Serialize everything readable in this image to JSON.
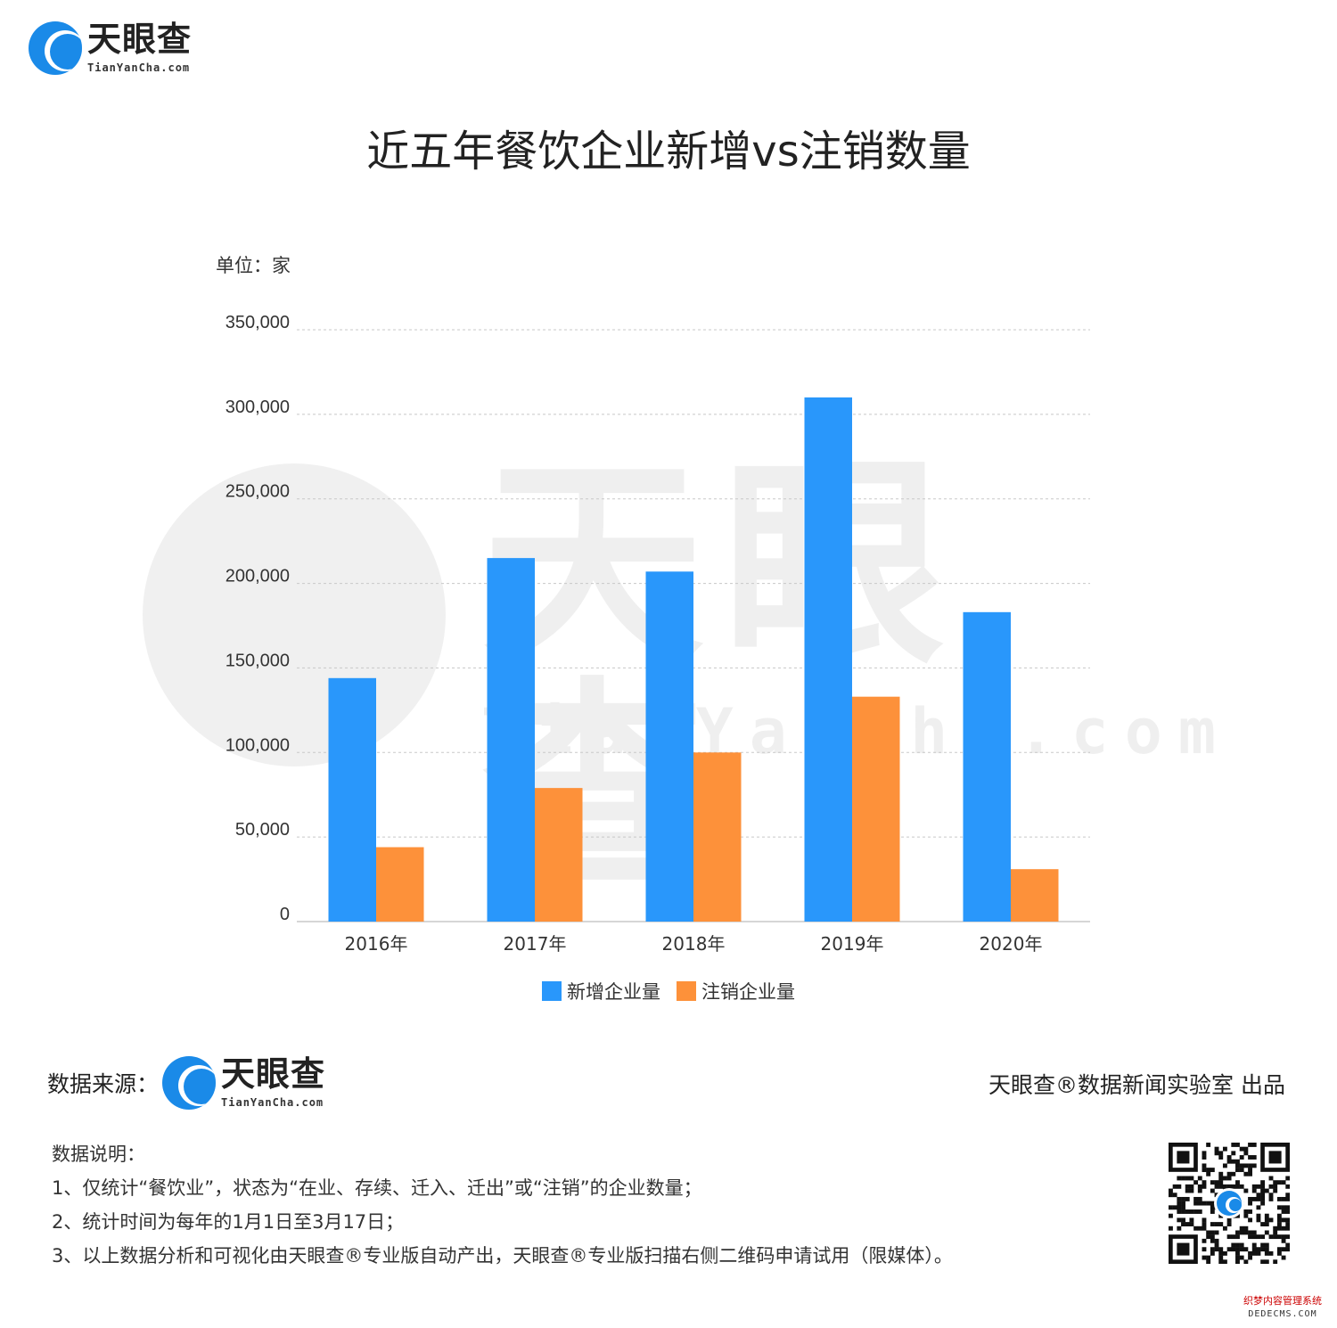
{
  "logo": {
    "brand": "天眼查",
    "domain": "TianYanCha.com"
  },
  "title": "近五年餐饮企业新增vs注销数量",
  "unit_label": "单位：家",
  "colors": {
    "new": "#2997fb",
    "cancel": "#fd913a",
    "grid": "#c8c8c8",
    "brand_blue": "#1a8ae8"
  },
  "legend": [
    {
      "name": "新增企业量",
      "color": "#2997fb"
    },
    {
      "name": "注销企业量",
      "color": "#fd913a"
    }
  ],
  "chart_data": {
    "type": "bar",
    "title": "近五年餐饮企业新增vs注销数量",
    "ylabel": "单位：家",
    "categories": [
      "2016年",
      "2017年",
      "2018年",
      "2019年",
      "2020年"
    ],
    "series": [
      {
        "name": "新增企业量",
        "values": [
          144000,
          215000,
          207000,
          310000,
          183000
        ]
      },
      {
        "name": "注销企业量",
        "values": [
          44000,
          79000,
          100000,
          133000,
          31000
        ]
      }
    ],
    "ylim": [
      0,
      350000
    ],
    "yticks": [
      0,
      50000,
      100000,
      150000,
      200000,
      250000,
      300000,
      350000
    ],
    "ytick_labels": [
      "0",
      "50,000",
      "100,000",
      "150,000",
      "200,000",
      "250,000",
      "300,000",
      "350,000"
    ],
    "grid": true,
    "legend_position": "bottom-center"
  },
  "source": {
    "label": "数据来源："
  },
  "publisher": "天眼查®数据新闻实验室 出品",
  "notes": {
    "heading": "数据说明：",
    "items": [
      "1、仅统计“餐饮业”，状态为“在业、存续、迁入、迁出”或“注销”的企业数量；",
      "2、统计时间为每年的1月1日至3月17日；",
      "3、以上数据分析和可视化由天眼查®专业版自动产出，天眼查®专业版扫描右侧二维码申请试用（限媒体）。"
    ]
  },
  "footer_watermark": {
    "line1": "织梦内容管理系统",
    "line2": "DEDECMS.COM"
  }
}
